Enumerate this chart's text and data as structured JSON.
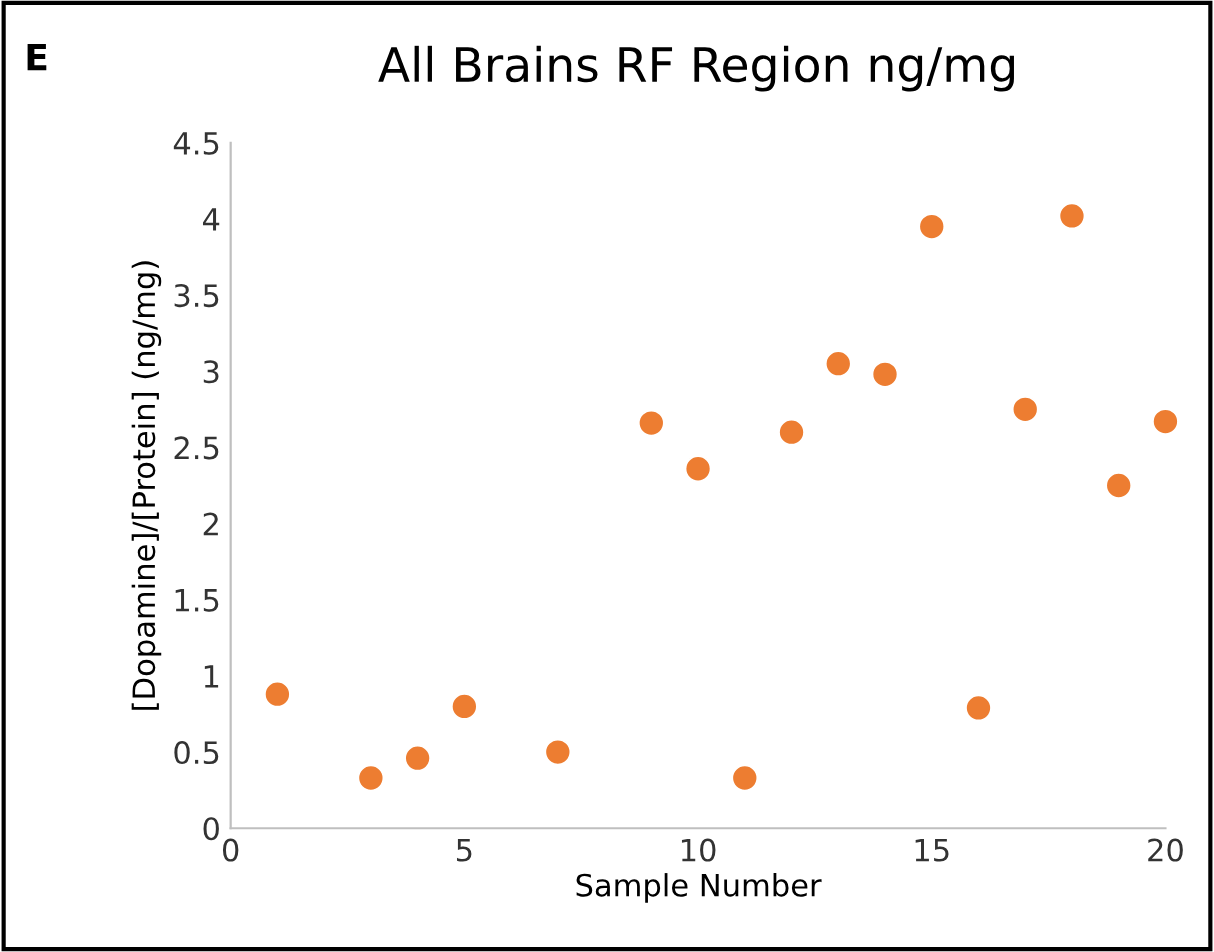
{
  "chart_data": {
    "type": "scatter",
    "title": "All Brains RF Region ng/mg",
    "xlabel": "Sample Number",
    "ylabel": "[Dopamine]/[Protein] (ng/mg)",
    "annotations": [
      "E"
    ],
    "x": [
      1,
      3,
      4,
      5,
      7,
      9,
      10,
      11,
      12,
      13,
      14,
      15,
      16,
      17,
      18,
      19,
      20
    ],
    "series": [
      {
        "color": "#ed7d31",
        "values": [
          0.88,
          0.33,
          0.46,
          0.8,
          0.5,
          2.66,
          2.36,
          0.33,
          2.6,
          3.05,
          2.98,
          3.95,
          0.79,
          2.75,
          4.02,
          2.25,
          2.67
        ]
      }
    ],
    "xlim": [
      0,
      20
    ],
    "xticks": [
      0,
      5,
      10,
      15,
      20
    ],
    "ylim": [
      0,
      4.5
    ],
    "yticks": [
      0,
      0.5,
      1,
      1.5,
      2,
      2.5,
      3,
      3.5,
      4,
      4.5
    ],
    "grid": false,
    "marker": "circle"
  }
}
